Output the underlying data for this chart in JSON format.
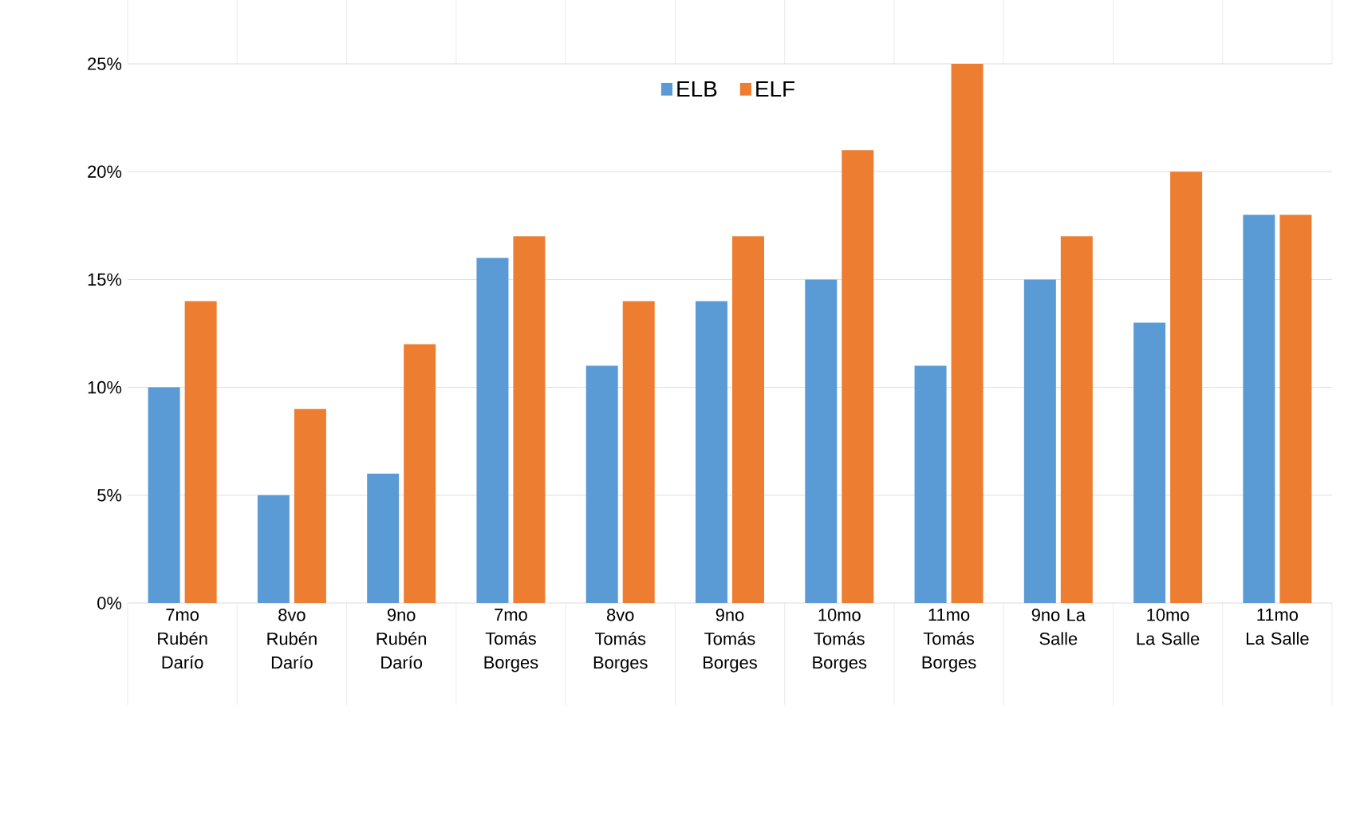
{
  "chart_data": {
    "type": "bar",
    "categories": [
      "7mo Rubén Darío",
      "8vo Rubén Darío",
      "9no Rubén Darío",
      "7mo Tomás Borges",
      "8vo Tomás Borges",
      "9no Tomás Borges",
      "10mo Tomás Borges",
      "11mo Tomás Borges",
      "9no La Salle",
      "10mo La Salle",
      "11mo La Salle"
    ],
    "series": [
      {
        "name": "ELB",
        "color": "#5b9bd5",
        "values": [
          10,
          5,
          6,
          16,
          11,
          14,
          15,
          11,
          15,
          13,
          18
        ]
      },
      {
        "name": "ELF",
        "color": "#ed7d31",
        "values": [
          14,
          9,
          12,
          17,
          14,
          17,
          21,
          25,
          17,
          20,
          18
        ]
      }
    ],
    "ylim": [
      0,
      25
    ],
    "yticks": [
      {
        "value": 0,
        "label": "0%"
      },
      {
        "value": 5,
        "label": "5%"
      },
      {
        "value": 10,
        "label": "10%"
      },
      {
        "value": 15,
        "label": "15%"
      },
      {
        "value": 20,
        "label": "20%"
      },
      {
        "value": 25,
        "label": "25%"
      }
    ],
    "grid": "y",
    "legend": "top"
  }
}
